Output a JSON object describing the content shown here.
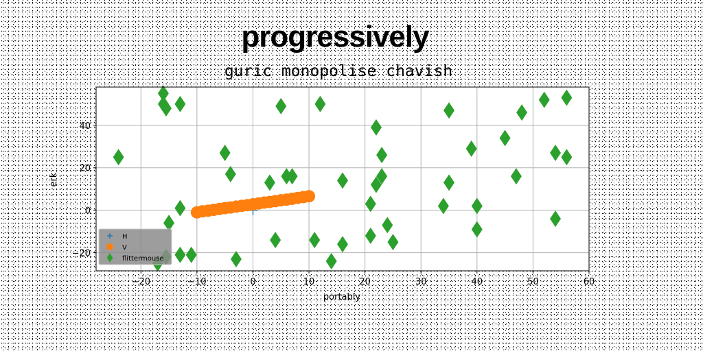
{
  "chart_data": {
    "type": "scatter",
    "title": "progressively",
    "subtitle": "guric monopolise chavish",
    "xlabel": "portably",
    "ylabel": "erk",
    "xlim": [
      -28,
      60
    ],
    "ylim": [
      -28.5,
      58
    ],
    "xticks": [
      -20,
      -10,
      0,
      10,
      20,
      30,
      40,
      50,
      60
    ],
    "yticks": [
      -20,
      0,
      20,
      40
    ],
    "grid": true,
    "legend_position": "lower-left",
    "series": [
      {
        "name": "H",
        "marker": "plus",
        "color": "#1f77b4",
        "points": [
          [
            0,
            0
          ]
        ]
      },
      {
        "name": "V",
        "marker": "circle",
        "color": "#ff7f0e",
        "points": [
          [
            -10,
            -1
          ],
          [
            -9,
            -0.5
          ],
          [
            -8,
            -0.2
          ],
          [
            -7,
            0.2
          ],
          [
            -6,
            0.6
          ],
          [
            -5,
            1
          ],
          [
            -4,
            1.3
          ],
          [
            -3,
            1.7
          ],
          [
            -2,
            2.1
          ],
          [
            -1,
            2.4
          ],
          [
            0,
            2.8
          ],
          [
            1,
            3.2
          ],
          [
            2,
            3.6
          ],
          [
            3,
            3.9
          ],
          [
            4,
            4.3
          ],
          [
            5,
            4.7
          ],
          [
            6,
            5
          ],
          [
            7,
            5.4
          ],
          [
            8,
            5.8
          ],
          [
            9,
            6.2
          ],
          [
            10,
            6.6
          ]
        ]
      },
      {
        "name": "flittermouse",
        "marker": "diamond",
        "color": "#2ca02c",
        "points": [
          [
            -16,
            55
          ],
          [
            -16,
            50
          ],
          [
            -15.5,
            48
          ],
          [
            -13,
            50
          ],
          [
            -24,
            25
          ],
          [
            -13,
            1
          ],
          [
            -15,
            -6
          ],
          [
            -15.5,
            -22
          ],
          [
            -13,
            -21
          ],
          [
            -11,
            -21
          ],
          [
            -17,
            -25
          ],
          [
            -5,
            27
          ],
          [
            -4,
            17
          ],
          [
            -3,
            -23
          ],
          [
            3,
            13
          ],
          [
            4,
            -14
          ],
          [
            5,
            49
          ],
          [
            6,
            16
          ],
          [
            7,
            16
          ],
          [
            11,
            -14
          ],
          [
            12,
            50
          ],
          [
            14,
            -24
          ],
          [
            16,
            14
          ],
          [
            16,
            -16
          ],
          [
            21,
            3
          ],
          [
            21,
            -12
          ],
          [
            22,
            12
          ],
          [
            22,
            39
          ],
          [
            23,
            26
          ],
          [
            23,
            16
          ],
          [
            24,
            -7
          ],
          [
            25,
            -15
          ],
          [
            34,
            2
          ],
          [
            35,
            13
          ],
          [
            35,
            47
          ],
          [
            39,
            29
          ],
          [
            40,
            2
          ],
          [
            40,
            -9
          ],
          [
            45,
            34
          ],
          [
            47,
            16
          ],
          [
            48,
            46
          ],
          [
            52,
            52
          ],
          [
            54,
            27
          ],
          [
            54,
            -4
          ],
          [
            56,
            53
          ],
          [
            56,
            25
          ]
        ]
      }
    ]
  }
}
